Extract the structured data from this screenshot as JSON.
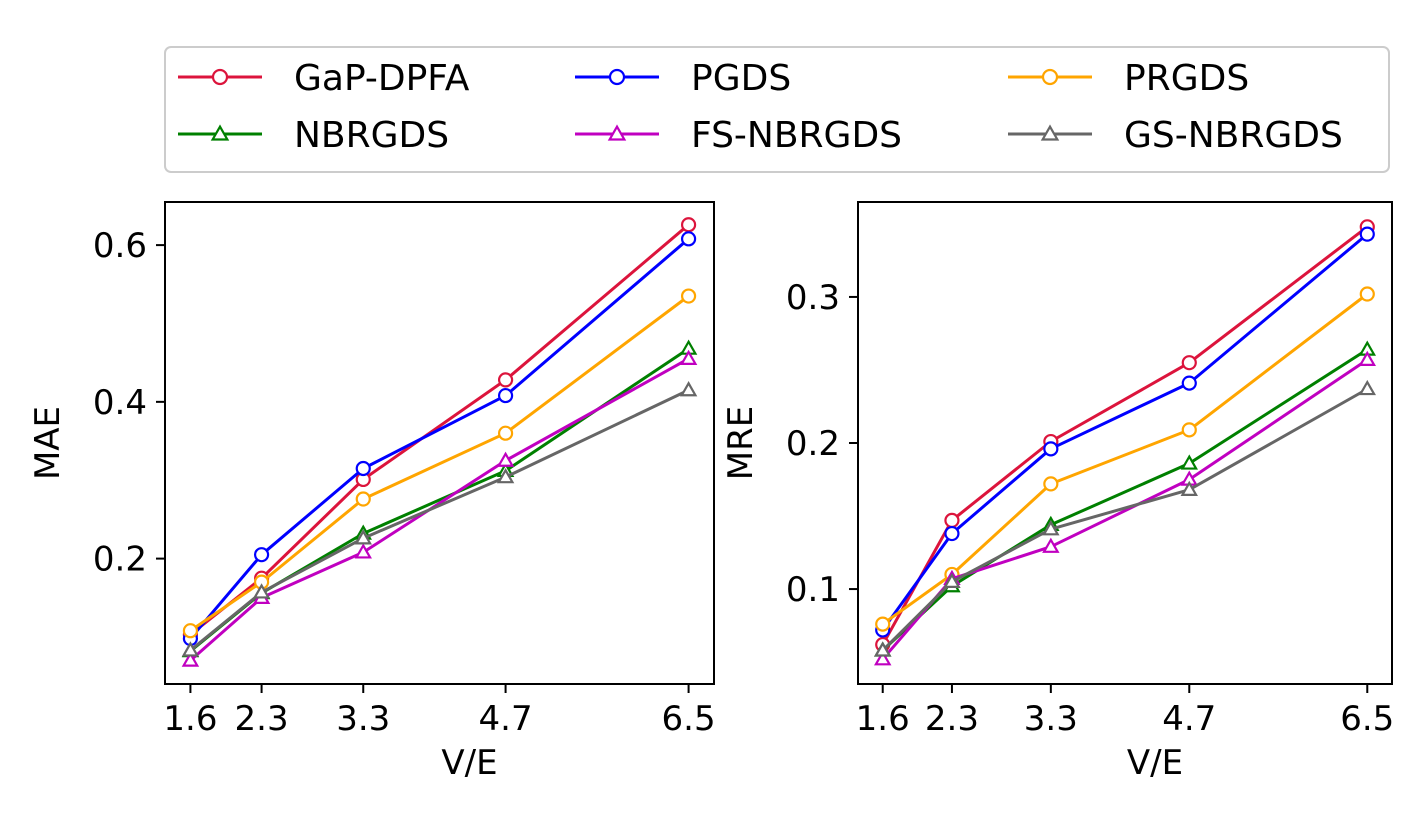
{
  "legend": {
    "entries": [
      {
        "name": "GaP-DPFA",
        "color": "#dc143c",
        "marker": "circle"
      },
      {
        "name": "PGDS",
        "color": "#0000ff",
        "marker": "circle"
      },
      {
        "name": "PRGDS",
        "color": "#ffa500",
        "marker": "circle"
      },
      {
        "name": "NBRGDS",
        "color": "#008000",
        "marker": "triangle"
      },
      {
        "name": "FS-NBRGDS",
        "color": "#c000c0",
        "marker": "triangle"
      },
      {
        "name": "GS-NBRGDS",
        "color": "#666666",
        "marker": "triangle"
      }
    ]
  },
  "chart_data": [
    {
      "type": "line",
      "id": "mae",
      "xlabel": "V/E",
      "ylabel": "MAE",
      "x": [
        1.6,
        2.3,
        3.3,
        4.7,
        6.5
      ],
      "x_tick_labels": [
        "1.6",
        "2.3",
        "3.3",
        "4.7",
        "6.5"
      ],
      "xlim": [
        1.35,
        6.75
      ],
      "ylim": [
        0.04,
        0.655
      ],
      "y_ticks": [
        0.2,
        0.4,
        0.6
      ],
      "y_tick_labels": [
        "0.2",
        "0.4",
        "0.6"
      ],
      "series": [
        {
          "name": "GaP-DPFA",
          "values": [
            0.103,
            0.175,
            0.301,
            0.428,
            0.626
          ]
        },
        {
          "name": "PGDS",
          "values": [
            0.098,
            0.205,
            0.315,
            0.408,
            0.608
          ]
        },
        {
          "name": "PRGDS",
          "values": [
            0.108,
            0.17,
            0.276,
            0.36,
            0.535
          ]
        },
        {
          "name": "NBRGDS",
          "values": [
            0.082,
            0.156,
            0.232,
            0.312,
            0.468
          ]
        },
        {
          "name": "FS-NBRGDS",
          "values": [
            0.07,
            0.15,
            0.208,
            0.325,
            0.455
          ]
        },
        {
          "name": "GS-NBRGDS",
          "values": [
            0.083,
            0.157,
            0.226,
            0.304,
            0.415
          ]
        }
      ]
    },
    {
      "type": "line",
      "id": "mre",
      "xlabel": "V/E",
      "ylabel": "MRE",
      "x": [
        1.6,
        2.3,
        3.3,
        4.7,
        6.5
      ],
      "x_tick_labels": [
        "1.6",
        "2.3",
        "3.3",
        "4.7",
        "6.5"
      ],
      "xlim": [
        1.35,
        6.75
      ],
      "ylim": [
        0.035,
        0.365
      ],
      "y_ticks": [
        0.1,
        0.2,
        0.3
      ],
      "y_tick_labels": [
        "0.1",
        "0.2",
        "0.3"
      ],
      "series": [
        {
          "name": "GaP-DPFA",
          "values": [
            0.062,
            0.147,
            0.201,
            0.255,
            0.348
          ]
        },
        {
          "name": "PGDS",
          "values": [
            0.072,
            0.138,
            0.196,
            0.241,
            0.343
          ]
        },
        {
          "name": "PRGDS",
          "values": [
            0.076,
            0.11,
            0.172,
            0.209,
            0.302
          ]
        },
        {
          "name": "NBRGDS",
          "values": [
            0.058,
            0.102,
            0.144,
            0.186,
            0.264
          ]
        },
        {
          "name": "FS-NBRGDS",
          "values": [
            0.052,
            0.107,
            0.129,
            0.175,
            0.257
          ]
        },
        {
          "name": "GS-NBRGDS",
          "values": [
            0.058,
            0.105,
            0.141,
            0.168,
            0.237
          ]
        }
      ]
    }
  ]
}
